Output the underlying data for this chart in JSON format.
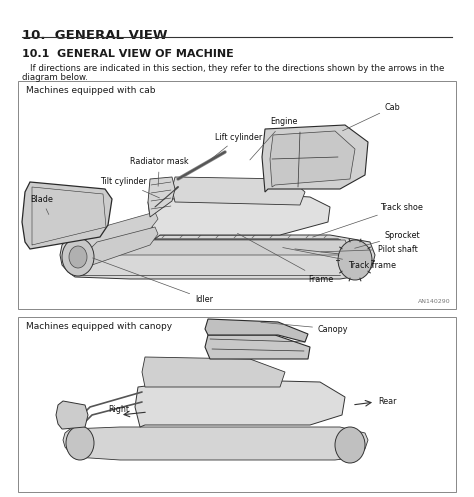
{
  "page_bg": "#ffffff",
  "outer_bg": "#e8e5e0",
  "title": "10.  GENERAL VIEW",
  "subtitle": "10.1  GENERAL VIEW OF MACHINE",
  "body_line1": "If directions are indicated in this section, they refer to the directions shown by the arrows in the",
  "body_line2": "diagram below.",
  "section1_label": "Machines equipped with cab",
  "section2_label": "Machines equipped with canopy",
  "image_code": "AN140290",
  "title_fontsize": 9.5,
  "subtitle_fontsize": 8.0,
  "body_fontsize": 6.2,
  "section_fontsize": 6.5,
  "label_fontsize": 5.8
}
